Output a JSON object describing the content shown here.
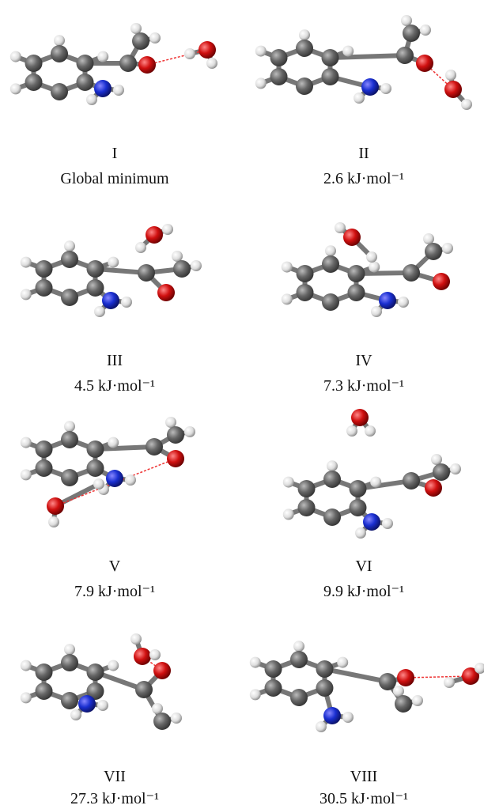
{
  "panels": [
    {
      "label": "I",
      "energy": "Global minimum"
    },
    {
      "label": "II",
      "energy": "2.6 kJ·mol⁻¹"
    },
    {
      "label": "III",
      "energy": "4.5 kJ·mol⁻¹"
    },
    {
      "label": "IV",
      "energy": "7.3 kJ·mol⁻¹"
    },
    {
      "label": "V",
      "energy": "7.9 kJ·mol⁻¹"
    },
    {
      "label": "VI",
      "energy": "9.9 kJ·mol⁻¹"
    },
    {
      "label": "VII",
      "energy": "27.3 kJ·mol⁻¹"
    },
    {
      "label": "VIII",
      "energy": "30.5 kJ·mol⁻¹"
    }
  ]
}
